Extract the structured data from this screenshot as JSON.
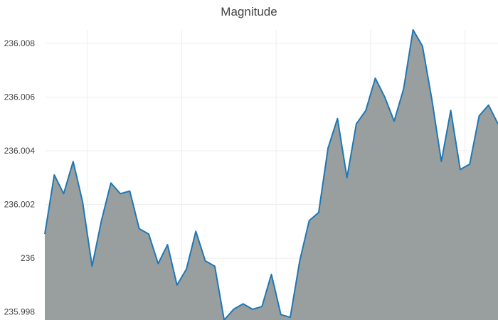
{
  "chart_data": {
    "type": "area",
    "title": "Magnitude",
    "xlabel": "",
    "ylabel": "",
    "ylim": [
      235.9977,
      236.0085
    ],
    "y_ticks": [
      "235.998",
      "236",
      "236.002",
      "236.004",
      "236.006",
      "236.008"
    ],
    "y_tick_values": [
      235.998,
      236.0,
      236.002,
      236.004,
      236.006,
      236.008
    ],
    "grid": true,
    "x": [
      0,
      1,
      2,
      3,
      4,
      5,
      6,
      7,
      8,
      9,
      10,
      11,
      12,
      13,
      14,
      15,
      16,
      17,
      18,
      19,
      20,
      21,
      22,
      23,
      24,
      25,
      26,
      27,
      28,
      29,
      30,
      31,
      32,
      33,
      34,
      35,
      36,
      37,
      38,
      39,
      40,
      41,
      42,
      43,
      44,
      45,
      46,
      47,
      48
    ],
    "xlim": [
      0,
      48
    ],
    "x_grid": [
      4.5,
      14.5,
      24.5,
      34.5,
      44.5
    ],
    "series": [
      {
        "values": [
          236.0009,
          236.0031,
          236.0024,
          236.0036,
          236.0021,
          235.9997,
          236.0014,
          236.0028,
          236.0024,
          236.0025,
          236.0011,
          236.0009,
          235.9998,
          236.0005,
          235.999,
          235.9996,
          236.001,
          235.9999,
          235.9997,
          235.9977,
          235.9981,
          235.9983,
          235.9981,
          235.9982,
          235.9994,
          235.9979,
          235.9978,
          235.9999,
          236.0014,
          236.0017,
          236.0041,
          236.0052,
          236.003,
          236.005,
          236.0055,
          236.0067,
          236.006,
          236.0051,
          236.0063,
          236.0085,
          236.0079,
          236.0059,
          236.0036,
          236.0055,
          236.0033,
          236.0035,
          236.0053,
          236.0057,
          236.005
        ],
        "color": "#1f77b4",
        "fill": "#999f9f"
      }
    ]
  }
}
